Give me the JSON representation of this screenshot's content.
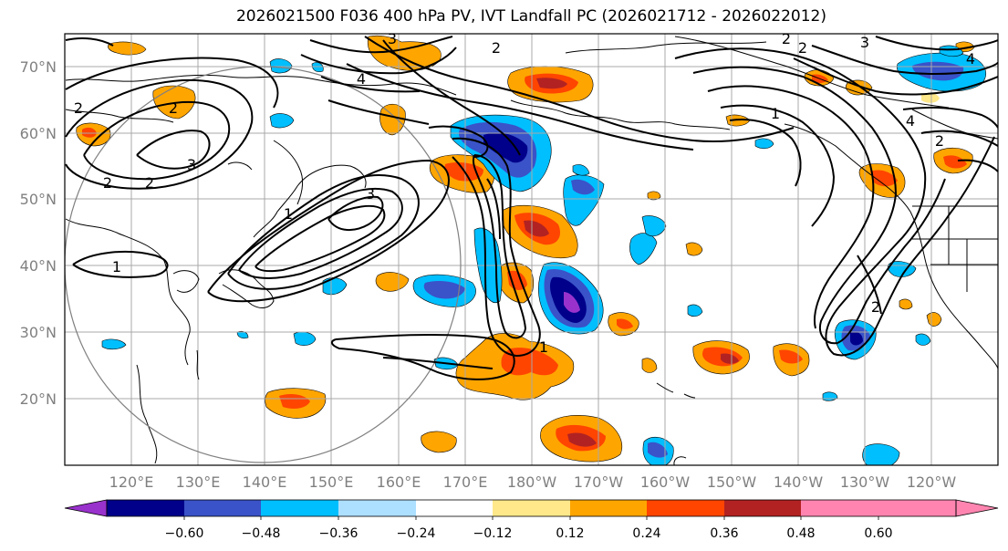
{
  "title": "2026021500 F036 400 hPa PV, IVT Landfall PC (2026021712 - 2026022012)",
  "lat_labels": [
    "70°N",
    "60°N",
    "50°N",
    "40°N",
    "30°N",
    "20°N"
  ],
  "lon_labels": [
    "120°E",
    "130°E",
    "140°E",
    "150°E",
    "160°E",
    "170°E",
    "180°W",
    "170°W",
    "160°W",
    "150°W",
    "140°W",
    "130°W",
    "120°W"
  ],
  "colorbar": {
    "ticks": [
      "−0.60",
      "−0.48",
      "−0.36",
      "−0.24",
      "−0.12",
      "0.12",
      "0.24",
      "0.36",
      "0.48",
      "0.60"
    ],
    "colors": [
      "#9932CC",
      "#00008B",
      "#3A53C8",
      "#00BFFF",
      "#ADDFFF",
      "#FFFFFF",
      "#FFE88A",
      "#FFA500",
      "#FF4500",
      "#B22222",
      "#FF85B0",
      "#FF85B0"
    ]
  },
  "contour_labels": [
    "2",
    "2",
    "3",
    "3",
    "4",
    "2",
    "2",
    "1",
    "1",
    "3",
    "1",
    "2",
    "2",
    "2",
    "3",
    "4",
    "4",
    "2",
    "2",
    "1"
  ]
}
